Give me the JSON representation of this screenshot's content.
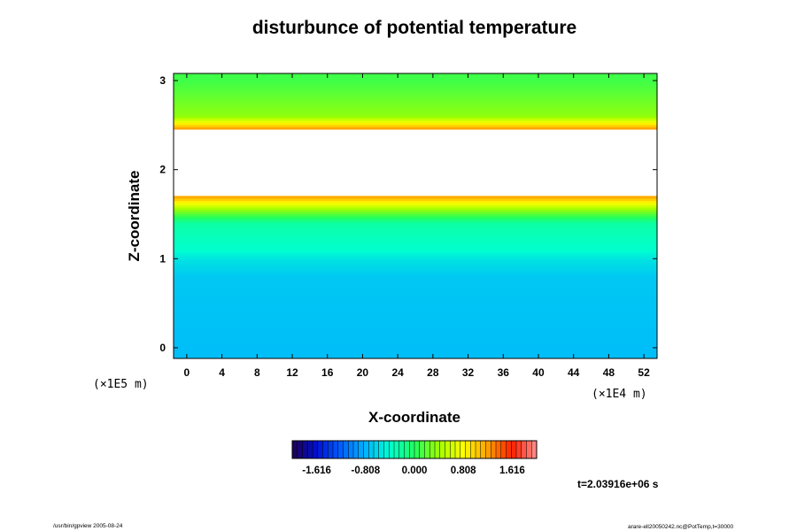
{
  "chart_data": {
    "type": "heatmap",
    "title": "disturbunce of potential temperature",
    "xlabel": "X-coordinate",
    "ylabel": "Z-coordinate",
    "x_scale_label": "(×1E4 m)",
    "y_scale_label": "(×1E5 m)",
    "xlim": [
      -1.5,
      53.5
    ],
    "ylim": [
      -0.12,
      3.08
    ],
    "x_ticks": [
      "0",
      "4",
      "8",
      "12",
      "16",
      "20",
      "24",
      "28",
      "32",
      "36",
      "40",
      "44",
      "48",
      "52"
    ],
    "y_ticks": [
      "0",
      "1",
      "2",
      "3"
    ],
    "colorbar": {
      "range": [
        -2.02,
        2.02
      ],
      "tick_labels": [
        "-1.616",
        "-0.808",
        "0.000",
        "0.808",
        "1.616"
      ],
      "colormap": [
        "#1e0050",
        "#0010d0",
        "#0060ff",
        "#00b4ff",
        "#00ffd0",
        "#20ff60",
        "#a0ff00",
        "#ffff00",
        "#ffa000",
        "#ff2000",
        "#ff9090"
      ]
    },
    "field_profile": [
      {
        "z": 0.0,
        "value": -0.75
      },
      {
        "z": 0.8,
        "value": -0.7
      },
      {
        "z": 1.0,
        "value": -0.55
      },
      {
        "z": 1.1,
        "value": -0.4
      },
      {
        "z": 1.4,
        "value": -0.25
      },
      {
        "z": 1.55,
        "value": 0.35
      },
      {
        "z": 1.7,
        "value": 1.2
      },
      {
        "z": 1.75,
        "value": null
      },
      {
        "z": 2.35,
        "value": null
      },
      {
        "z": 2.45,
        "value": 1.3
      },
      {
        "z": 2.6,
        "value": 0.35
      },
      {
        "z": 3.0,
        "value": 0.1
      }
    ],
    "blank_band_note": "",
    "time_label": "t=2.03916e+06 s"
  },
  "footer": {
    "left": "/usr/bin/gpview 2005-08-24",
    "right": "arare-ell20050242.nc@PotTemp,t=30000"
  }
}
